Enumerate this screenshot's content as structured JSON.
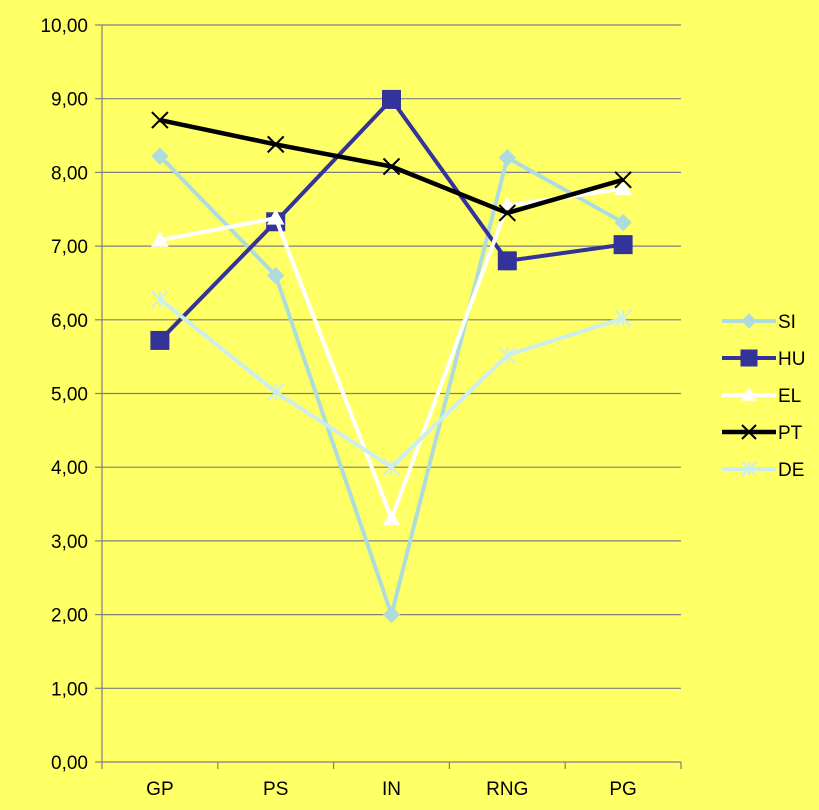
{
  "chart_data": {
    "type": "line",
    "title": "",
    "xlabel": "",
    "ylabel": "",
    "categories": [
      "GP",
      "PS",
      "IN",
      "RNG",
      "PG"
    ],
    "ylim": [
      0,
      10
    ],
    "yticks": [
      "0,00",
      "1,00",
      "2,00",
      "3,00",
      "4,00",
      "5,00",
      "6,00",
      "7,00",
      "8,00",
      "9,00",
      "10,00"
    ],
    "grid": "horizontal",
    "legend_position": "right",
    "background": "#FFFF66",
    "series": [
      {
        "name": "SI",
        "marker": "diamond",
        "color": "#AEDCDC",
        "values": [
          8.22,
          6.6,
          2.0,
          8.2,
          7.32
        ]
      },
      {
        "name": "HU",
        "marker": "square",
        "color": "#333399",
        "values": [
          5.72,
          7.33,
          8.99,
          6.8,
          7.02
        ]
      },
      {
        "name": "EL",
        "marker": "triangle",
        "color": "#FFFFFF",
        "values": [
          7.08,
          7.38,
          3.3,
          7.55,
          7.78
        ]
      },
      {
        "name": "PT",
        "marker": "x",
        "color": "#000000",
        "values": [
          8.71,
          8.38,
          8.08,
          7.45,
          7.9
        ]
      },
      {
        "name": "DE",
        "marker": "star",
        "color": "#CCEEEE",
        "values": [
          6.28,
          5.02,
          4.0,
          5.52,
          6.02
        ]
      }
    ]
  }
}
